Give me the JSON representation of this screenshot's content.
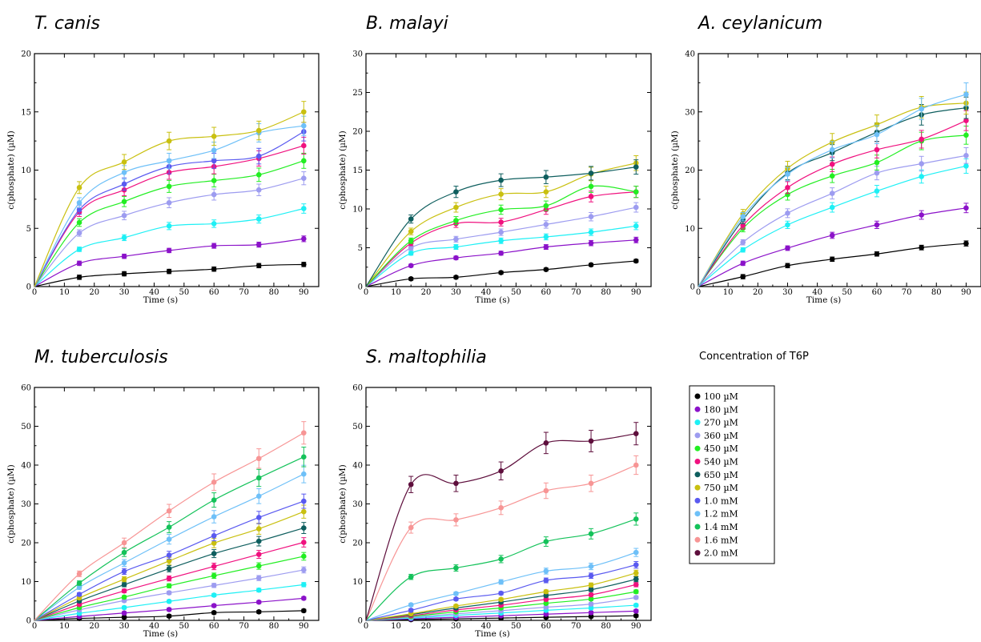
{
  "legend": {
    "title": "Concentration of T6P",
    "entries": [
      "100 µM",
      "180 µM",
      "270 µM",
      "360 µM",
      "450 µM",
      "540 µM",
      "650 µM",
      "750 µM",
      "1.0 mM",
      "1.2 mM",
      "1.4 mM",
      "1.6 mM",
      "2.0 mM"
    ]
  },
  "colors": [
    "#000000",
    "#8b12c9",
    "#1ef0f5",
    "#9d9cf0",
    "#22ee22",
    "#f0117f",
    "#0e5e5e",
    "#c9c010",
    "#5a5af0",
    "#6ec0f8",
    "#14c25a",
    "#f79595",
    "#5e0e3c"
  ],
  "chart_data": [
    {
      "type": "scatter",
      "title": "T. canis",
      "xlabel": "Time (s)",
      "ylabel": "c(phosphate) (µM)",
      "xlim": [
        0,
        95
      ],
      "ylim": [
        0,
        20
      ],
      "xticks": [
        0,
        10,
        20,
        30,
        40,
        50,
        60,
        70,
        80,
        90
      ],
      "yticks": [
        0,
        5,
        10,
        15,
        20
      ],
      "x": [
        15,
        30,
        45,
        60,
        75,
        90
      ],
      "series": [
        {
          "name": "100 µM",
          "values": [
            0.8,
            1.1,
            1.3,
            1.5,
            1.8,
            1.9
          ]
        },
        {
          "name": "180 µM",
          "values": [
            2.0,
            2.6,
            3.1,
            3.5,
            3.6,
            4.1
          ]
        },
        {
          "name": "270 µM",
          "values": [
            3.2,
            4.2,
            5.2,
            5.4,
            5.8,
            6.7
          ]
        },
        {
          "name": "360 µM",
          "values": [
            4.6,
            6.1,
            7.2,
            7.9,
            8.3,
            9.3
          ]
        },
        {
          "name": "450 µM",
          "values": [
            5.5,
            7.3,
            8.6,
            9.1,
            9.6,
            10.8
          ]
        },
        {
          "name": "540 µM",
          "values": [
            6.4,
            8.3,
            9.8,
            10.3,
            11.0,
            12.1
          ]
        },
        {
          "name": "1.0 mM",
          "values": [
            6.6,
            8.8,
            10.3,
            10.8,
            11.2,
            13.3
          ]
        },
        {
          "name": "1.2 mM",
          "values": [
            7.2,
            9.8,
            10.8,
            11.7,
            13.2,
            13.8
          ]
        },
        {
          "name": "750 µM",
          "values": [
            8.5,
            10.7,
            12.5,
            12.9,
            13.4,
            15.0
          ]
        }
      ]
    },
    {
      "type": "scatter",
      "title": "B. malayi",
      "xlabel": "Time (s)",
      "ylabel": "c(phosphate) (µM)",
      "xlim": [
        0,
        95
      ],
      "ylim": [
        0,
        30
      ],
      "xticks": [
        0,
        10,
        20,
        30,
        40,
        50,
        60,
        70,
        80,
        90
      ],
      "yticks": [
        0,
        5,
        10,
        15,
        20,
        25,
        30
      ],
      "x": [
        15,
        30,
        45,
        60,
        75,
        90
      ],
      "series": [
        {
          "name": "100 µM",
          "values": [
            1.0,
            1.2,
            1.8,
            2.2,
            2.8,
            3.3
          ]
        },
        {
          "name": "180 µM",
          "values": [
            2.7,
            3.7,
            4.3,
            5.1,
            5.6,
            6.0
          ]
        },
        {
          "name": "270 µM",
          "values": [
            4.3,
            5.1,
            5.9,
            6.4,
            7.0,
            7.8
          ]
        },
        {
          "name": "360 µM",
          "values": [
            5.0,
            6.1,
            7.0,
            8.0,
            9.0,
            10.2
          ]
        },
        {
          "name": "540 µM",
          "values": [
            5.6,
            8.1,
            8.3,
            9.9,
            11.6,
            12.2
          ]
        },
        {
          "name": "450 µM",
          "values": [
            5.9,
            8.5,
            9.9,
            10.4,
            12.9,
            12.2
          ]
        },
        {
          "name": "750 µM",
          "values": [
            7.1,
            10.2,
            11.9,
            12.2,
            14.5,
            15.9
          ]
        },
        {
          "name": "650 µM",
          "values": [
            8.7,
            12.2,
            13.7,
            14.1,
            14.6,
            15.4
          ]
        }
      ]
    },
    {
      "type": "scatter",
      "title": "A. ceylanicum",
      "xlabel": "Time (s)",
      "ylabel": "c(phosphate) (µM)",
      "xlim": [
        0,
        95
      ],
      "ylim": [
        0,
        40
      ],
      "xticks": [
        0,
        10,
        20,
        30,
        40,
        50,
        60,
        70,
        80,
        90
      ],
      "yticks": [
        0,
        10,
        20,
        30,
        40
      ],
      "x": [
        15,
        30,
        45,
        60,
        75,
        90
      ],
      "series": [
        {
          "name": "100 µM",
          "values": [
            1.7,
            3.6,
            4.7,
            5.6,
            6.7,
            7.4
          ]
        },
        {
          "name": "180 µM",
          "values": [
            4.0,
            6.6,
            8.8,
            10.6,
            12.3,
            13.5
          ]
        },
        {
          "name": "270 µM",
          "values": [
            6.3,
            10.6,
            13.6,
            16.4,
            18.9,
            20.7
          ]
        },
        {
          "name": "360 µM",
          "values": [
            7.6,
            12.6,
            16.0,
            19.5,
            21.1,
            22.5
          ]
        },
        {
          "name": "450 µM",
          "values": [
            10.0,
            15.8,
            19.0,
            21.3,
            25.0,
            26.0
          ]
        },
        {
          "name": "540 µM",
          "values": [
            10.5,
            17.0,
            21.0,
            23.5,
            25.3,
            28.5
          ]
        },
        {
          "name": "650 µM",
          "values": [
            11.5,
            19.5,
            23.0,
            26.5,
            29.5,
            30.7
          ]
        },
        {
          "name": "750 µM",
          "values": [
            12.5,
            20.3,
            24.8,
            27.8,
            30.8,
            31.5
          ]
        },
        {
          "name": "1.2 mM",
          "values": [
            12.0,
            19.3,
            23.5,
            26.1,
            30.5,
            33.0
          ]
        }
      ]
    },
    {
      "type": "scatter",
      "title": "M. tuberculosis",
      "xlabel": "Time (s)",
      "ylabel": "c(phosphate) (µM)",
      "xlim": [
        0,
        95
      ],
      "ylim": [
        0,
        60
      ],
      "xticks": [
        0,
        10,
        20,
        30,
        40,
        50,
        60,
        70,
        80,
        90
      ],
      "yticks": [
        0,
        10,
        20,
        30,
        40,
        50,
        60
      ],
      "x": [
        15,
        30,
        45,
        60,
        75,
        90
      ],
      "series": [
        {
          "name": "100 µM",
          "values": [
            0.5,
            0.8,
            1.1,
            2.0,
            2.2,
            2.5
          ]
        },
        {
          "name": "180 µM",
          "values": [
            1.0,
            1.9,
            2.8,
            3.8,
            4.7,
            5.7
          ]
        },
        {
          "name": "270 µM",
          "values": [
            1.8,
            3.3,
            4.9,
            6.5,
            7.8,
            9.2
          ]
        },
        {
          "name": "360 µM",
          "values": [
            2.7,
            5.1,
            7.1,
            9.0,
            10.9,
            13.0
          ]
        },
        {
          "name": "450 µM",
          "values": [
            3.3,
            6.0,
            8.9,
            11.5,
            14.0,
            16.5
          ]
        },
        {
          "name": "540 µM",
          "values": [
            4.1,
            7.6,
            10.8,
            13.9,
            17.0,
            20.1
          ]
        },
        {
          "name": "650 µM",
          "values": [
            5.0,
            9.2,
            13.3,
            17.2,
            20.4,
            23.8
          ]
        },
        {
          "name": "750 µM",
          "values": [
            5.8,
            10.6,
            15.3,
            19.9,
            23.6,
            28.0
          ]
        },
        {
          "name": "1.0 mM",
          "values": [
            6.7,
            12.6,
            16.8,
            21.8,
            26.5,
            30.7
          ]
        },
        {
          "name": "1.2 mM",
          "values": [
            8.5,
            14.8,
            20.9,
            26.7,
            32.0,
            37.7
          ]
        },
        {
          "name": "1.4 mM",
          "values": [
            9.6,
            17.5,
            24.0,
            31.0,
            36.7,
            42.1
          ]
        },
        {
          "name": "1.6 mM",
          "values": [
            12.0,
            20.0,
            28.2,
            35.6,
            41.7,
            48.3
          ]
        }
      ]
    },
    {
      "type": "scatter",
      "title": "S. maltophilia",
      "xlabel": "Time (s)",
      "ylabel": "c(phosphate) (µM)",
      "xlim": [
        0,
        95
      ],
      "ylim": [
        0,
        60
      ],
      "xticks": [
        0,
        10,
        20,
        30,
        40,
        50,
        60,
        70,
        80,
        90
      ],
      "yticks": [
        0,
        10,
        20,
        30,
        40,
        50,
        60
      ],
      "x": [
        15,
        30,
        45,
        60,
        75,
        90
      ],
      "series": [
        {
          "name": "100 µM",
          "values": [
            0.2,
            0.4,
            0.6,
            0.8,
            1.0,
            1.2
          ]
        },
        {
          "name": "180 µM",
          "values": [
            0.4,
            0.8,
            1.2,
            1.6,
            2.0,
            2.4
          ]
        },
        {
          "name": "270 µM",
          "values": [
            0.6,
            1.3,
            1.9,
            2.6,
            3.2,
            3.9
          ]
        },
        {
          "name": "360 µM",
          "values": [
            0.8,
            1.7,
            2.5,
            3.4,
            4.2,
            5.9
          ]
        },
        {
          "name": "450 µM",
          "values": [
            1.0,
            2.2,
            3.2,
            4.4,
            5.5,
            7.4
          ]
        },
        {
          "name": "540 µM",
          "values": [
            1.2,
            2.7,
            3.9,
            5.4,
            6.6,
            9.2
          ]
        },
        {
          "name": "650 µM",
          "values": [
            1.5,
            3.2,
            4.7,
            6.4,
            7.9,
            10.6
          ]
        },
        {
          "name": "750 µM",
          "values": [
            1.7,
            3.7,
            5.4,
            7.4,
            9.1,
            12.2
          ]
        },
        {
          "name": "1.0 mM",
          "values": [
            2.6,
            5.5,
            7.0,
            10.3,
            11.5,
            14.3
          ]
        },
        {
          "name": "1.2 mM",
          "values": [
            4.0,
            6.9,
            9.9,
            12.7,
            13.9,
            17.5
          ]
        },
        {
          "name": "1.4 mM",
          "values": [
            11.2,
            13.5,
            15.8,
            20.3,
            22.3,
            26.1
          ]
        },
        {
          "name": "1.6 mM",
          "values": [
            23.9,
            25.9,
            29.0,
            33.4,
            35.3,
            40.0
          ]
        },
        {
          "name": "2.0 mM",
          "values": [
            35.0,
            35.3,
            38.5,
            45.7,
            46.2,
            48.1
          ]
        }
      ]
    }
  ]
}
